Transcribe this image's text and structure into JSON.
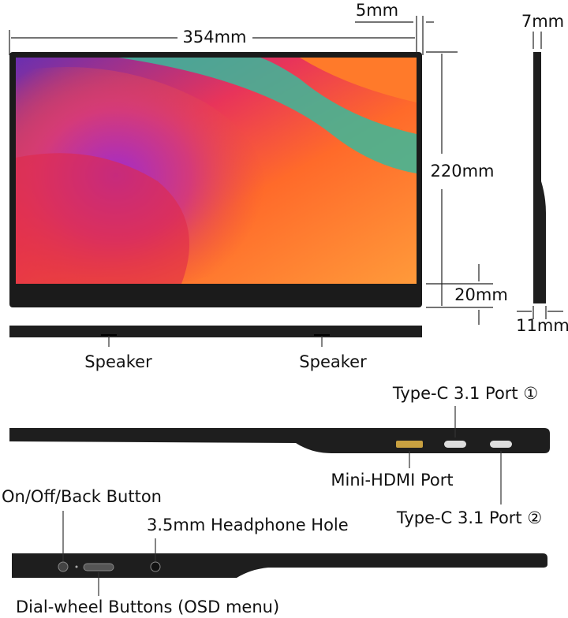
{
  "dimensions": {
    "bezel": "5mm",
    "width": "354mm",
    "top_thickness": "7mm",
    "height": "220mm",
    "chin": "20mm",
    "bottom_thickness": "11mm"
  },
  "speakers": [
    "Speaker",
    "Speaker"
  ],
  "ports": {
    "type_c_1": "Type-C 3.1 Port ①",
    "mini_hdmi": "Mini-HDMI Port",
    "type_c_2": "Type-C 3.1 Port ②"
  },
  "controls": {
    "power": "On/Off/Back Button",
    "headphone": "3.5mm Headphone Hole",
    "dial": "Dial-wheel Buttons (OSD menu)"
  }
}
